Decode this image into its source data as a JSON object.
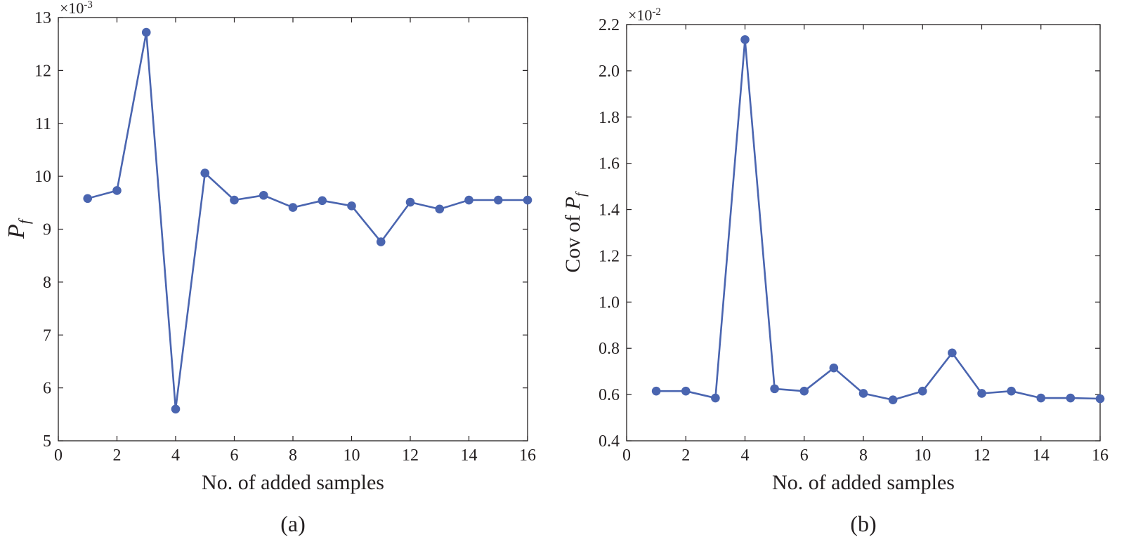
{
  "chart_data": [
    {
      "type": "line",
      "xlabel": "No. of added samples",
      "ylabel": {
        "main": "P",
        "sub": "f"
      },
      "caption": "(a)",
      "y_multiplier": "×10",
      "y_multiplier_exp": "-3",
      "xlim": [
        0,
        16
      ],
      "ylim": [
        5,
        13
      ],
      "xticks": [
        0,
        2,
        4,
        6,
        8,
        10,
        12,
        14,
        16
      ],
      "yticks": [
        5,
        6,
        7,
        8,
        9,
        10,
        11,
        12,
        13
      ],
      "ytick_labels": [
        "5",
        "6",
        "7",
        "8",
        "9",
        "10",
        "11",
        "12",
        "13"
      ],
      "grid": false,
      "color": "#4a65b0",
      "series": [
        {
          "x": [
            1,
            2,
            3,
            4,
            5,
            6,
            7,
            8,
            9,
            10,
            11,
            12,
            13,
            14,
            15,
            16
          ],
          "y": [
            9.58,
            9.73,
            12.72,
            5.6,
            10.06,
            9.55,
            9.64,
            9.41,
            9.54,
            9.44,
            8.76,
            9.51,
            9.38,
            9.55,
            9.55,
            9.55
          ]
        }
      ]
    },
    {
      "type": "line",
      "xlabel": "No. of added samples",
      "ylabel": {
        "main": "Cov of ",
        "italic": "P",
        "sub": "f"
      },
      "caption": "(b)",
      "y_multiplier": "×10",
      "y_multiplier_exp": "-2",
      "xlim": [
        0,
        16
      ],
      "ylim": [
        0.4,
        2.2
      ],
      "xticks": [
        0,
        2,
        4,
        6,
        8,
        10,
        12,
        14,
        16
      ],
      "yticks": [
        0.4,
        0.6,
        0.8,
        1.0,
        1.2,
        1.4,
        1.6,
        1.8,
        2.0,
        2.2
      ],
      "ytick_labels": [
        "0.4",
        "0.6",
        "0.8",
        "1.0",
        "1.2",
        "1.4",
        "1.6",
        "1.8",
        "2.0",
        "2.2"
      ],
      "grid": false,
      "color": "#4a65b0",
      "series": [
        {
          "x": [
            1,
            2,
            3,
            4,
            5,
            6,
            7,
            8,
            9,
            10,
            11,
            12,
            13,
            14,
            15,
            16
          ],
          "y": [
            0.615,
            0.615,
            0.585,
            2.135,
            0.625,
            0.615,
            0.715,
            0.605,
            0.577,
            0.615,
            0.78,
            0.605,
            0.615,
            0.585,
            0.585,
            0.582
          ]
        }
      ]
    }
  ]
}
